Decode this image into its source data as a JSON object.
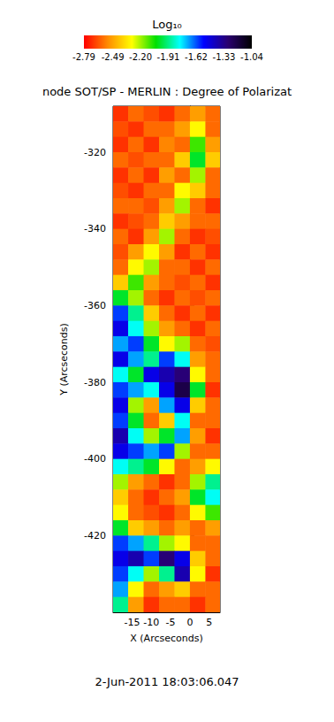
{
  "chart_data": {
    "type": "heatmap",
    "title": "node SOT/SP - MERLIN : Degree of Polarizat",
    "x_label": "X (Arcseconds)",
    "y_label": "Y (Arcseconds)",
    "annotations": [
      "2-Jun-2011 18:03:06.047"
    ],
    "xlim": [
      -19.9,
      7.8
    ],
    "ylim": [
      -440,
      -308
    ],
    "xticks": [
      -15,
      -10,
      -5,
      0,
      5
    ],
    "yticks": [
      -420,
      -400,
      -380,
      -360,
      -340,
      -320
    ],
    "x": [
      -18,
      -14,
      -10,
      -6,
      -2,
      2,
      6
    ],
    "y": [
      -310,
      -314,
      -318,
      -322,
      -326,
      -330,
      -334,
      -338,
      -342,
      -346,
      -350,
      -354,
      -358,
      -362,
      -366,
      -370,
      -374,
      -378,
      -382,
      -386,
      -390,
      -394,
      -398,
      -402,
      -406,
      -410,
      -414,
      -418,
      -422,
      -426,
      -430,
      -434,
      -438
    ],
    "cells": [
      [
        -2.7,
        -2.6,
        -2.65,
        -2.7,
        -2.6,
        -2.5,
        -2.6
      ],
      [
        -2.65,
        -2.7,
        -2.6,
        -2.6,
        -2.5,
        -2.3,
        -2.6
      ],
      [
        -2.7,
        -2.6,
        -2.7,
        -2.55,
        -2.6,
        -2.1,
        -2.5
      ],
      [
        -2.6,
        -2.65,
        -2.6,
        -2.6,
        -2.4,
        -2.0,
        -2.4
      ],
      [
        -2.7,
        -2.6,
        -2.7,
        -2.5,
        -2.6,
        -2.2,
        -2.6
      ],
      [
        -2.65,
        -2.7,
        -2.6,
        -2.6,
        -2.3,
        -2.4,
        -2.6
      ],
      [
        -2.6,
        -2.6,
        -2.65,
        -2.5,
        -2.2,
        -2.6,
        -2.7
      ],
      [
        -2.7,
        -2.65,
        -2.6,
        -2.4,
        -2.5,
        -2.6,
        -2.6
      ],
      [
        -2.6,
        -2.7,
        -2.5,
        -2.2,
        -2.6,
        -2.7,
        -2.65
      ],
      [
        -2.65,
        -2.5,
        -2.3,
        -2.5,
        -2.7,
        -2.6,
        -2.7
      ],
      [
        -2.6,
        -2.3,
        -2.2,
        -2.6,
        -2.6,
        -2.7,
        -2.6
      ],
      [
        -2.4,
        -2.1,
        -2.5,
        -2.6,
        -2.65,
        -2.6,
        -2.7
      ],
      [
        -2.0,
        -2.2,
        -2.6,
        -2.7,
        -2.6,
        -2.65,
        -2.6
      ],
      [
        -1.6,
        -1.9,
        -2.4,
        -2.6,
        -2.7,
        -2.6,
        -2.7
      ],
      [
        -1.5,
        -1.8,
        -2.2,
        -2.5,
        -2.6,
        -2.7,
        -2.6
      ],
      [
        -1.7,
        -1.6,
        -2.0,
        -2.3,
        -2.2,
        -2.6,
        -2.65
      ],
      [
        -1.5,
        -1.7,
        -1.9,
        -1.6,
        -1.8,
        -2.5,
        -2.6
      ],
      [
        -1.8,
        -2.0,
        -1.5,
        -1.4,
        -1.3,
        -2.3,
        -2.6
      ],
      [
        -1.6,
        -1.7,
        -1.8,
        -1.5,
        -1.2,
        -2.0,
        -2.7
      ],
      [
        -1.5,
        -2.2,
        -2.5,
        -1.7,
        -1.5,
        -2.4,
        -2.6
      ],
      [
        -1.6,
        -2.0,
        -2.6,
        -2.4,
        -1.8,
        -2.6,
        -2.6
      ],
      [
        -1.4,
        -1.8,
        -2.2,
        -2.0,
        -1.7,
        -2.5,
        -2.7
      ],
      [
        -1.5,
        -1.6,
        -1.7,
        -1.6,
        -2.2,
        -2.6,
        -2.6
      ],
      [
        -1.8,
        -1.9,
        -2.0,
        -2.3,
        -2.6,
        -2.5,
        -2.3
      ],
      [
        -2.2,
        -2.5,
        -2.6,
        -2.7,
        -2.6,
        -2.2,
        -1.9
      ],
      [
        -2.4,
        -2.6,
        -2.7,
        -2.6,
        -2.5,
        -2.0,
        -1.8
      ],
      [
        -2.3,
        -2.6,
        -2.65,
        -2.7,
        -2.6,
        -2.3,
        -2.1
      ],
      [
        -2.0,
        -2.4,
        -2.5,
        -2.6,
        -2.5,
        -2.6,
        -2.5
      ],
      [
        -1.6,
        -1.7,
        -1.9,
        -2.2,
        -2.3,
        -2.6,
        -2.6
      ],
      [
        -1.5,
        -1.4,
        -1.6,
        -1.3,
        -1.5,
        -2.4,
        -2.6
      ],
      [
        -1.6,
        -1.8,
        -2.2,
        -1.9,
        -1.4,
        -2.3,
        -2.7
      ],
      [
        -1.7,
        -2.3,
        -2.6,
        -2.5,
        -2.4,
        -2.6,
        -2.6
      ],
      [
        -1.9,
        -2.5,
        -2.7,
        -2.6,
        -2.6,
        -2.7,
        -2.6
      ]
    ],
    "colorbar": {
      "label": "Log₁₀",
      "range": [
        -2.79,
        -1.04
      ],
      "ticks": [
        -2.79,
        -2.49,
        {
          "value": -2.2,
          "label": "-2.20"
        },
        -1.91,
        -1.62,
        -1.33,
        -1.04
      ]
    }
  }
}
